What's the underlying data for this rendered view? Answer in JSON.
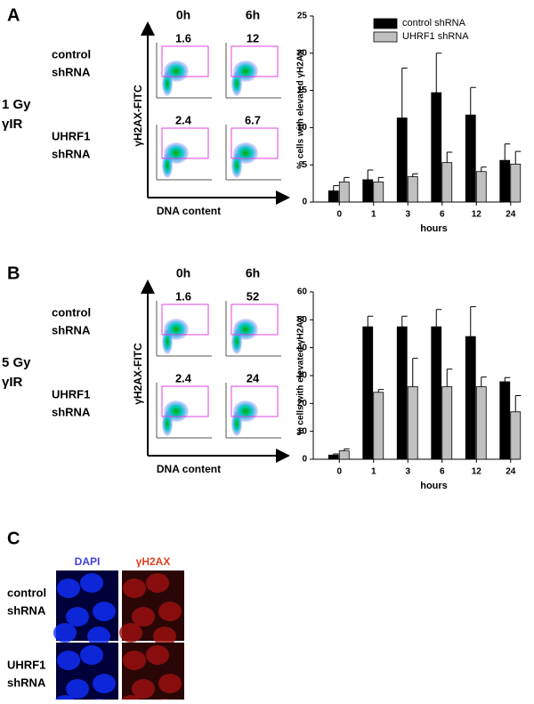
{
  "panels": [
    {
      "label": "A",
      "dose": [
        "1 Gy",
        "γIR"
      ],
      "timepoints": [
        "0h",
        "6h"
      ],
      "rows": [
        {
          "label": [
            "control",
            "shRNA"
          ],
          "percents": [
            1.6,
            12
          ]
        },
        {
          "label": [
            "UHRF1",
            "shRNA"
          ],
          "percents": [
            2.4,
            6.7
          ]
        }
      ],
      "y_axis": "γH2AX-FITC",
      "x_axis": "DNA content"
    },
    {
      "label": "B",
      "dose": [
        "5 Gy",
        "γIR"
      ],
      "timepoints": [
        "0h",
        "6h"
      ],
      "rows": [
        {
          "label": [
            "control",
            "shRNA"
          ],
          "percents": [
            1.6,
            52
          ]
        },
        {
          "label": [
            "UHRF1",
            "shRNA"
          ],
          "percents": [
            2.4,
            24
          ]
        }
      ],
      "y_axis": "γH2AX-FITC",
      "x_axis": "DNA content"
    }
  ],
  "panel_c": {
    "label": "C",
    "columns": [
      "DAPI",
      "γH2AX"
    ],
    "rows": [
      [
        "control",
        "shRNA"
      ],
      [
        "UHRF1",
        "shRNA"
      ]
    ]
  },
  "chart_data": [
    {
      "type": "bar",
      "ylabel": "% cells with elevated γH2AX",
      "xlabel": "hours",
      "categories": [
        "0",
        "1",
        "3",
        "6",
        "12",
        "24"
      ],
      "series": [
        {
          "name": "control shRNA",
          "color": "#000000",
          "values": [
            1.5,
            3.0,
            11.3,
            14.7,
            11.7,
            5.6
          ],
          "errors": [
            0.7,
            1.3,
            6.7,
            5.3,
            3.7,
            2.2
          ]
        },
        {
          "name": "UHRF1 shRNA",
          "color": "#c0c0c0",
          "values": [
            2.7,
            2.7,
            3.4,
            5.3,
            4.1,
            5.1
          ],
          "errors": [
            0.6,
            0.6,
            0.4,
            1.4,
            0.6,
            1.7
          ]
        }
      ],
      "ylim": [
        0,
        25
      ],
      "yticks": [
        0,
        5,
        10,
        15,
        20,
        25
      ],
      "legend": true
    },
    {
      "type": "bar",
      "ylabel": "% cells with elevated γH2AX",
      "xlabel": "hours",
      "categories": [
        "0",
        "1",
        "3",
        "6",
        "12",
        "24"
      ],
      "series": [
        {
          "color": "#000000",
          "values": [
            1.5,
            47.5,
            47.5,
            47.5,
            44,
            27.8
          ],
          "errors": [
            0.4,
            3.8,
            3.8,
            6.2,
            10.7,
            1.5
          ]
        },
        {
          "color": "#c0c0c0",
          "values": [
            3,
            24,
            26,
            26,
            26,
            17
          ],
          "errors": [
            0.7,
            1,
            10.2,
            6.3,
            3.5,
            5.8
          ]
        }
      ],
      "ylim": [
        0,
        60
      ],
      "yticks": [
        0,
        10,
        20,
        30,
        40,
        50,
        60
      ],
      "legend": false
    }
  ]
}
